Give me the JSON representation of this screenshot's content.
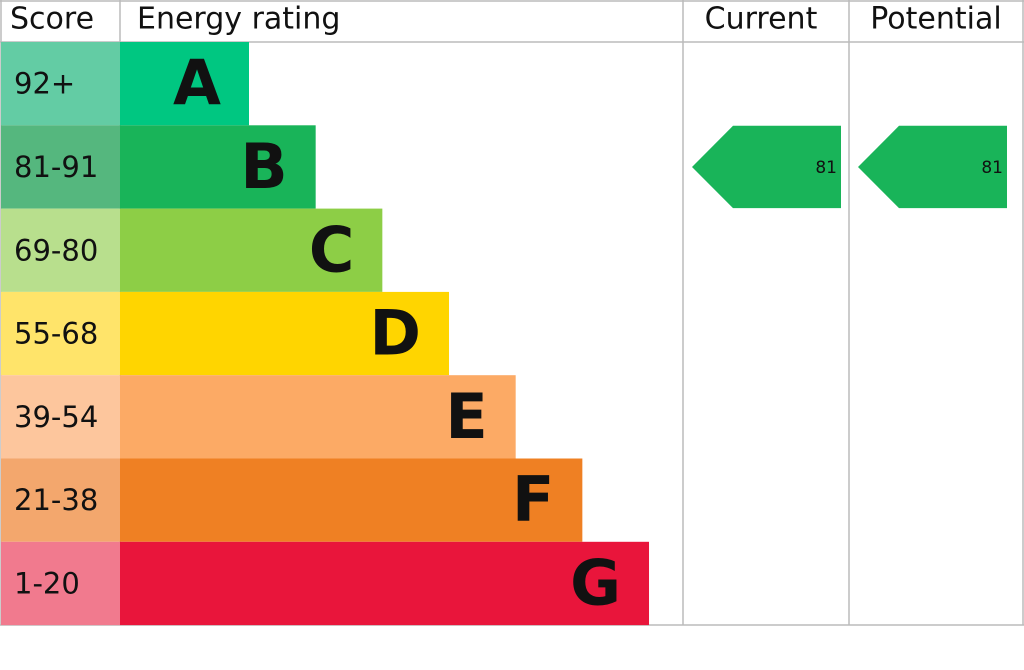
{
  "headers": {
    "score": "Score",
    "rating": "Energy rating",
    "current": "Current",
    "potential": "Potential"
  },
  "bands": [
    {
      "score": "92+",
      "letter": "A",
      "color": "#00c781",
      "score_color": "#63cca4"
    },
    {
      "score": "81-91",
      "letter": "B",
      "color": "#19b459",
      "score_color": "#55b77e"
    },
    {
      "score": "69-80",
      "letter": "C",
      "color": "#8dce46",
      "score_color": "#b8df8d"
    },
    {
      "score": "55-68",
      "letter": "D",
      "color": "#ffd500",
      "score_color": "#ffe46a"
    },
    {
      "score": "39-54",
      "letter": "E",
      "color": "#fcaa65",
      "score_color": "#fdc69d"
    },
    {
      "score": "21-38",
      "letter": "F",
      "color": "#ef8023",
      "score_color": "#f3a76d"
    },
    {
      "score": "1-20",
      "letter": "G",
      "color": "#e9153b",
      "score_color": "#f17a8e"
    }
  ],
  "current": 81,
  "potential": 81
}
